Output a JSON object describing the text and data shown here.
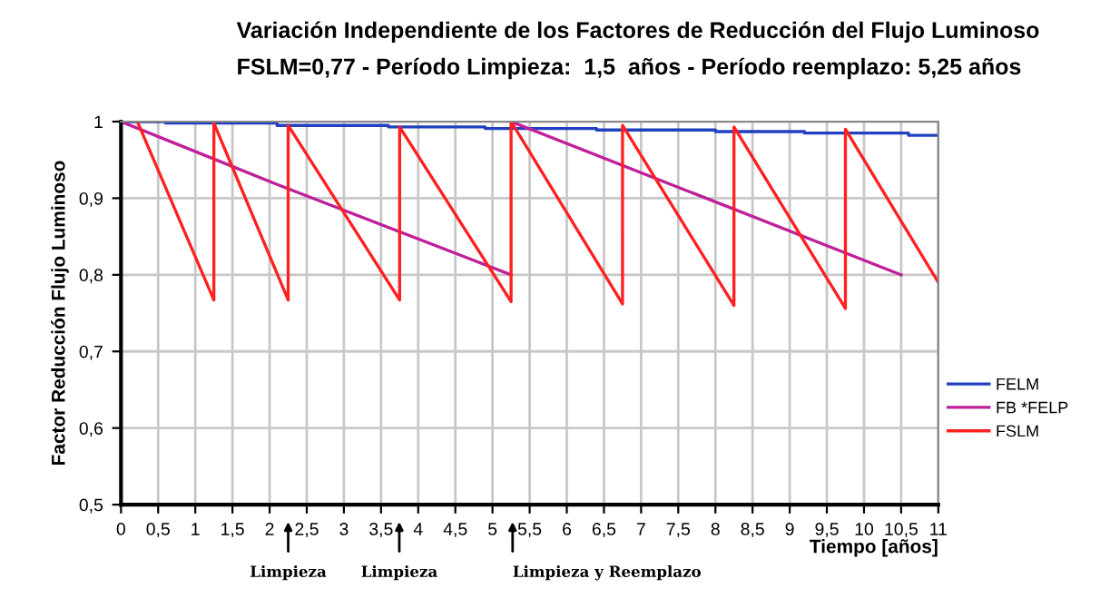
{
  "chart_data": {
    "type": "line",
    "title": "Variación Independiente de los Factores de Reducción del Flujo Luminoso",
    "subtitle": "FSLM=0,77 - Período Limpieza:  1,5  años - Período reemplazo: 5,25 años",
    "xlabel": "Tiempo [años]",
    "ylabel": "Factor Reducción Flujo Luminoso",
    "series": [
      {
        "name": "FELM",
        "color": "#2040c0",
        "x": [
          0,
          0.6,
          0.6,
          2.1,
          2.1,
          3.6,
          3.6,
          4.9,
          4.9,
          6.4,
          6.4,
          8.0,
          8.0,
          9.2,
          9.2,
          10.6,
          10.6,
          11
        ],
        "values": [
          1,
          1,
          0.998,
          0.998,
          0.995,
          0.995,
          0.993,
          0.993,
          0.991,
          0.991,
          0.989,
          0.989,
          0.987,
          0.987,
          0.985,
          0.985,
          0.982,
          0.982
        ]
      },
      {
        "name": "FB *FELP",
        "color": "#c0209a",
        "x": [
          0,
          2.1,
          5.25,
          null,
          5.25,
          10.5
        ],
        "values": [
          1,
          0.918,
          0.8,
          null,
          1,
          0.8
        ]
      },
      {
        "name": "FSLM",
        "color": "#ff2020",
        "x": [
          0.22,
          1.25,
          1.25,
          2.25,
          2.25,
          3.75,
          3.75,
          5.25,
          5.25,
          6.75,
          6.75,
          8.25,
          8.25,
          9.75,
          9.75,
          11
        ],
        "values": [
          1,
          0.767,
          0.998,
          0.767,
          0.995,
          0.767,
          0.993,
          0.765,
          1,
          0.762,
          0.995,
          0.76,
          0.993,
          0.756,
          0.99,
          0.79
        ]
      }
    ],
    "xlim": [
      0,
      11
    ],
    "xticks": [
      0,
      {
        "value": 0.5,
        "label": "0,5"
      },
      1,
      {
        "value": 1.5,
        "label": "1,5"
      },
      2,
      {
        "value": 2.5,
        "label": "2,5"
      },
      3,
      {
        "value": 3.5,
        "label": "3,5"
      },
      4,
      {
        "value": 4.5,
        "label": "4,5"
      },
      5,
      {
        "value": 5.5,
        "label": "5,5"
      },
      6,
      {
        "value": 6.5,
        "label": "6,5"
      },
      7,
      {
        "value": 7.5,
        "label": "7,5"
      },
      8,
      {
        "value": 8.5,
        "label": "8,5"
      },
      9,
      {
        "value": 9.5,
        "label": "9,5"
      },
      10,
      {
        "value": 10.5,
        "label": "10,5"
      },
      11
    ],
    "ylim": [
      0.5,
      1
    ],
    "yticks": [
      {
        "value": 0.5,
        "label": "0,5"
      },
      {
        "value": 0.6,
        "label": "0,6"
      },
      {
        "value": 0.7,
        "label": "0,7"
      },
      {
        "value": 0.8,
        "label": "0,8"
      },
      {
        "value": 0.9,
        "label": "0,9"
      },
      1
    ],
    "annotations": [
      "Limpieza",
      "Limpieza",
      "Limpieza y Reemplazo"
    ],
    "grid": true,
    "legend": "right",
    "line_style": "solid",
    "marker": "none"
  }
}
